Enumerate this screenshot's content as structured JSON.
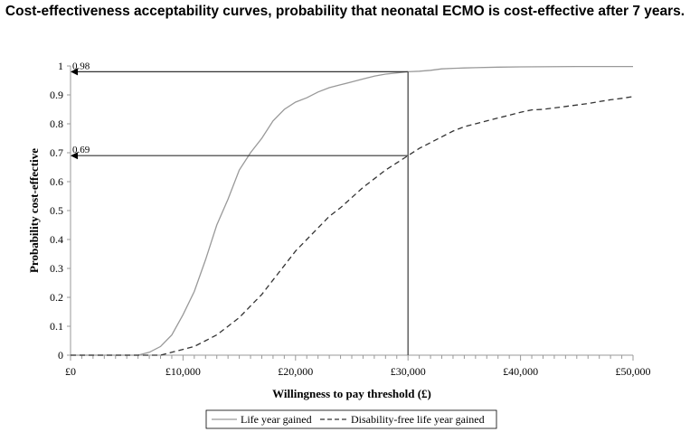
{
  "chart_data": {
    "type": "line",
    "title": "Cost-effectiveness acceptability curves, probability that neonatal ECMO is cost-effective after 7 years.",
    "xlabel": "Willingness to pay threshold (£)",
    "ylabel": "Probability cost-effective",
    "xlim": [
      0,
      50000
    ],
    "ylim": [
      0,
      1
    ],
    "x_ticks": [
      "£0",
      "£10,000",
      "£20,000",
      "£30,000",
      "£40,000",
      "£50,000"
    ],
    "y_ticks": [
      "0",
      "0.1",
      "0.2",
      "0.3",
      "0.4",
      "0.5",
      "0.6",
      "0.7",
      "0.8",
      "0.9",
      "1"
    ],
    "grid": false,
    "legend_position": "bottom",
    "series": [
      {
        "name": "Life year gained",
        "style": "solid",
        "color": "#999999",
        "x": [
          0,
          1000,
          2000,
          3000,
          4000,
          5000,
          6000,
          7000,
          8000,
          9000,
          10000,
          11000,
          12000,
          13000,
          14000,
          15000,
          16000,
          17000,
          18000,
          19000,
          20000,
          21000,
          22000,
          23000,
          24000,
          25000,
          26000,
          27000,
          28000,
          29000,
          30000,
          31000,
          32000,
          33000,
          34000,
          35000,
          36000,
          38000,
          40000,
          45000,
          50000
        ],
        "y": [
          0,
          0,
          0,
          0,
          0,
          0,
          0,
          0.01,
          0.03,
          0.07,
          0.14,
          0.22,
          0.33,
          0.45,
          0.54,
          0.64,
          0.7,
          0.75,
          0.81,
          0.85,
          0.875,
          0.89,
          0.91,
          0.925,
          0.935,
          0.945,
          0.955,
          0.965,
          0.972,
          0.976,
          0.98,
          0.982,
          0.985,
          0.99,
          0.992,
          0.993,
          0.994,
          0.996,
          0.997,
          0.998,
          0.998
        ]
      },
      {
        "name": "Disability-free life year gained",
        "style": "dashed",
        "color": "#333333",
        "x": [
          0,
          1000,
          2000,
          3000,
          4000,
          5000,
          6000,
          7000,
          8000,
          9000,
          10000,
          11000,
          12000,
          13000,
          14000,
          15000,
          16000,
          17000,
          18000,
          19000,
          20000,
          21000,
          22000,
          23000,
          24000,
          25000,
          26000,
          27000,
          28000,
          29000,
          30000,
          31000,
          32000,
          33000,
          34000,
          35000,
          36000,
          37000,
          38000,
          39000,
          40000,
          41000,
          42000,
          43000,
          44000,
          45000,
          46000,
          47000,
          48000,
          49000,
          50000
        ],
        "y": [
          0,
          0,
          0,
          0,
          0,
          0,
          0,
          0,
          0,
          0.01,
          0.02,
          0.03,
          0.05,
          0.07,
          0.1,
          0.13,
          0.17,
          0.21,
          0.26,
          0.31,
          0.36,
          0.4,
          0.44,
          0.48,
          0.51,
          0.545,
          0.58,
          0.61,
          0.64,
          0.665,
          0.69,
          0.715,
          0.735,
          0.755,
          0.775,
          0.79,
          0.8,
          0.81,
          0.82,
          0.83,
          0.84,
          0.848,
          0.85,
          0.855,
          0.86,
          0.865,
          0.87,
          0.877,
          0.883,
          0.888,
          0.894
        ]
      }
    ],
    "annotations": [
      {
        "label": "0.98",
        "threshold_x": 30000,
        "y": 0.98
      },
      {
        "label": "0.69",
        "threshold_x": 30000,
        "y": 0.69
      }
    ]
  }
}
